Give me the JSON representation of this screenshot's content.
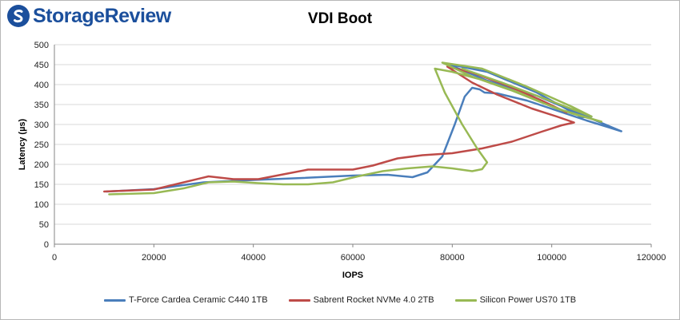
{
  "brand": {
    "name": "StorageReview",
    "mark_color": "#1b4f9c"
  },
  "chart_data": {
    "type": "line",
    "title": "VDI Boot",
    "xlabel": "IOPS",
    "ylabel": "Latency (µs)",
    "xlim": [
      0,
      120000
    ],
    "ylim": [
      0,
      500
    ],
    "xticks": [
      "0",
      "20000",
      "40000",
      "60000",
      "80000",
      "100000",
      "120000"
    ],
    "yticks": [
      "0",
      "50",
      "100",
      "150",
      "200",
      "250",
      "300",
      "350",
      "400",
      "450",
      "500"
    ],
    "grid": "horizontal",
    "legend_position": "bottom",
    "series": [
      {
        "name": "T-Force Cardea Ceramic C440 1TB",
        "color": "#4a7ebb",
        "points": [
          [
            10500,
            132
          ],
          [
            20000,
            138
          ],
          [
            30000,
            155
          ],
          [
            40000,
            161
          ],
          [
            50000,
            166
          ],
          [
            60000,
            172
          ],
          [
            67000,
            174
          ],
          [
            72000,
            168
          ],
          [
            75000,
            180
          ],
          [
            78000,
            220
          ],
          [
            80500,
            300
          ],
          [
            82500,
            370
          ],
          [
            84000,
            392
          ],
          [
            85500,
            388
          ],
          [
            86500,
            380
          ],
          [
            89000,
            378
          ],
          [
            95000,
            360
          ],
          [
            101000,
            335
          ],
          [
            107000,
            310
          ],
          [
            114000,
            283
          ],
          [
            105000,
            330
          ],
          [
            97000,
            372
          ],
          [
            87000,
            410
          ],
          [
            79000,
            452
          ],
          [
            87000,
            432
          ],
          [
            97000,
            380
          ],
          [
            106000,
            318
          ],
          [
            108000,
            320
          ]
        ]
      },
      {
        "name": "Sabrent Rocket NVMe 4.0 2TB",
        "color": "#be4b48",
        "points": [
          [
            10000,
            132
          ],
          [
            20000,
            137
          ],
          [
            26000,
            155
          ],
          [
            31000,
            170
          ],
          [
            36000,
            163
          ],
          [
            41000,
            163
          ],
          [
            46000,
            175
          ],
          [
            51000,
            187
          ],
          [
            56000,
            187
          ],
          [
            60000,
            187
          ],
          [
            64000,
            197
          ],
          [
            69000,
            215
          ],
          [
            74000,
            223
          ],
          [
            80000,
            228
          ],
          [
            86000,
            240
          ],
          [
            92000,
            257
          ],
          [
            98000,
            282
          ],
          [
            102000,
            298
          ],
          [
            104500,
            305
          ],
          [
            101000,
            320
          ],
          [
            96000,
            340
          ],
          [
            89000,
            375
          ],
          [
            84000,
            405
          ],
          [
            79000,
            445
          ],
          [
            84000,
            430
          ],
          [
            91000,
            398
          ],
          [
            98000,
            360
          ],
          [
            103000,
            330
          ]
        ]
      },
      {
        "name": "Silicon Power US70 1TB",
        "color": "#98b954",
        "points": [
          [
            11000,
            125
          ],
          [
            20000,
            128
          ],
          [
            26000,
            140
          ],
          [
            31000,
            155
          ],
          [
            36000,
            157
          ],
          [
            41000,
            153
          ],
          [
            46000,
            150
          ],
          [
            51000,
            150
          ],
          [
            56000,
            155
          ],
          [
            61000,
            170
          ],
          [
            66000,
            183
          ],
          [
            71000,
            190
          ],
          [
            76000,
            195
          ],
          [
            80000,
            190
          ],
          [
            84000,
            183
          ],
          [
            86000,
            188
          ],
          [
            87000,
            205
          ],
          [
            85000,
            240
          ],
          [
            82000,
            300
          ],
          [
            78500,
            380
          ],
          [
            76500,
            440
          ],
          [
            80000,
            432
          ],
          [
            86000,
            412
          ],
          [
            93000,
            382
          ],
          [
            99000,
            350
          ],
          [
            104000,
            328
          ],
          [
            110000,
            307
          ],
          [
            101000,
            340
          ],
          [
            92000,
            385
          ],
          [
            84000,
            420
          ],
          [
            78000,
            455
          ],
          [
            86000,
            440
          ],
          [
            95000,
            395
          ],
          [
            104000,
            345
          ],
          [
            108000,
            320
          ],
          [
            100000,
            358
          ],
          [
            90000,
            405
          ],
          [
            82000,
            440
          ]
        ]
      }
    ]
  }
}
